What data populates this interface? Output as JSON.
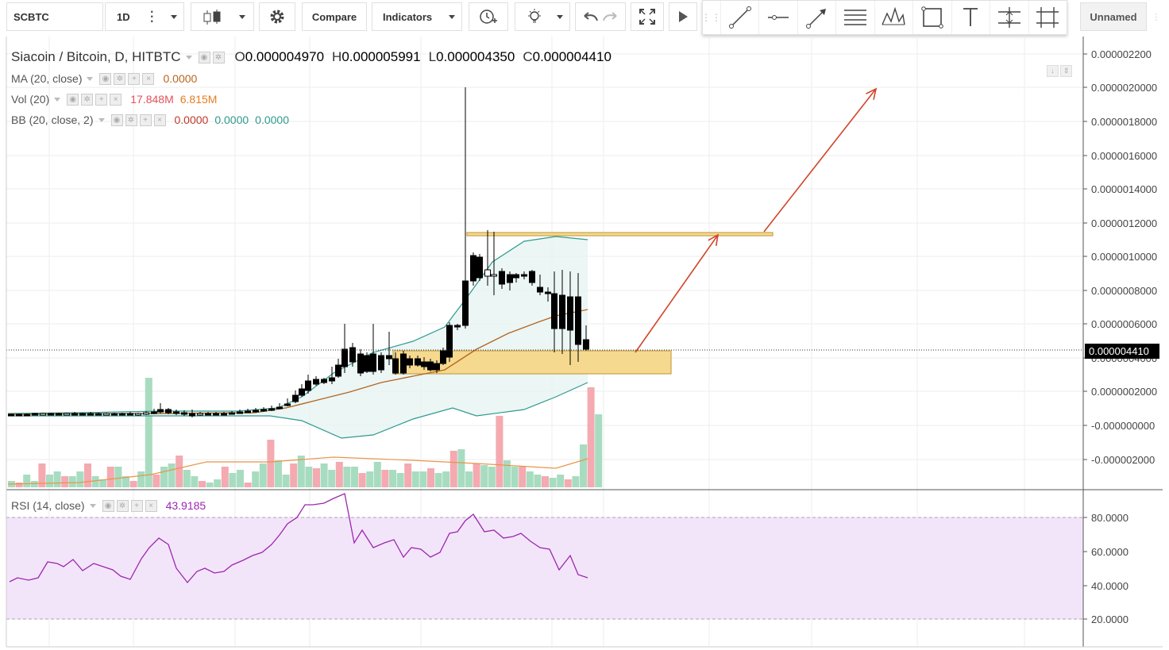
{
  "toolbar": {
    "symbol": "SCBTC",
    "interval": "1D",
    "compare_label": "Compare",
    "indicators_label": "Indicators",
    "layout_name": "Unnamed"
  },
  "legend": {
    "title": "Siacoin / Bitcoin, D, HITBTC",
    "open_key": "O",
    "open": "0.000004970",
    "high_key": "H",
    "high": "0.000005991",
    "low_key": "L",
    "low": "0.000004350",
    "close_key": "C",
    "close": "0.000004410",
    "ma_label": "MA (20, close)",
    "ma_value": "0.0000",
    "vol_label": "Vol (20)",
    "vol_value": "17.848M",
    "vol_ma": "6.815M",
    "bb_label": "BB (20, close, 2)",
    "bb_basis": "0.0000",
    "bb_upper": "0.0000",
    "bb_lower": "0.0000",
    "rsi_label": "RSI (14, close)",
    "rsi_value": "43.9185"
  },
  "price_axis": {
    "ticks": [
      "0.000002200",
      "0.0000020000",
      "0.0000018000",
      "0.0000016000",
      "0.0000014000",
      "0.0000012000",
      "0.0000010000",
      "0.0000008000",
      "0.0000006000",
      "0.0000004000",
      "0.0000002000",
      "-0.000000000",
      "-0.000002000"
    ],
    "last_price": "0.000004410"
  },
  "rsi_axis": {
    "ticks": [
      "80.0000",
      "60.0000",
      "40.0000",
      "20.0000"
    ]
  },
  "colors": {
    "up": "#000000",
    "down": "#000000",
    "vol_up": "#a8dcc0",
    "vol_down": "#f4aab0",
    "ma": "#b8651f",
    "bb": "#2e9a8e",
    "bb_fill": "#e6f4f2",
    "zone": "#f5d98e",
    "arrow": "#d2452a",
    "rsi": "#9c27b0",
    "rsi_band": "#f3e5f9"
  },
  "icons": [
    "candles-icon",
    "gear-icon",
    "alert-icon",
    "lightbulb-icon",
    "undo-icon",
    "redo-icon",
    "fullscreen-icon",
    "play-icon",
    "trend-line-icon",
    "horizontal-line-icon",
    "arrow-icon",
    "fib-icon",
    "pattern-icon",
    "rectangle-icon",
    "text-icon",
    "measure-icon",
    "forecast-icon"
  ]
}
